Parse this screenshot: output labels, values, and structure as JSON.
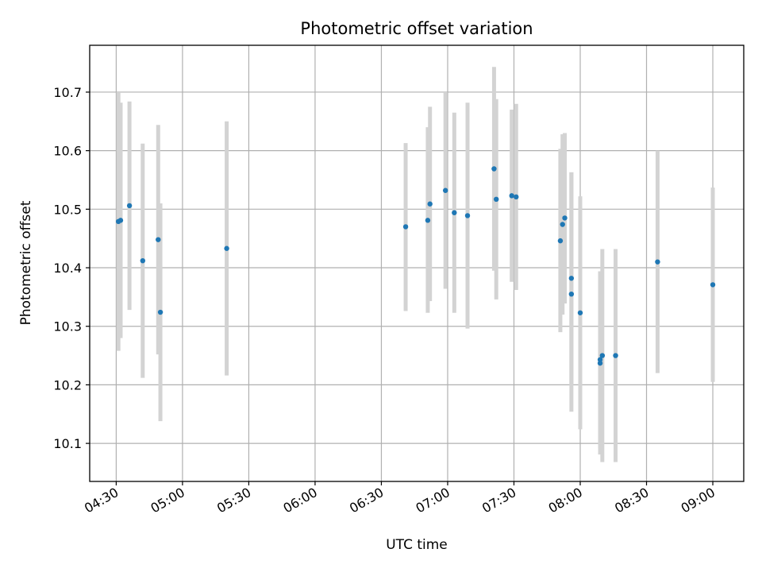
{
  "chart_data": {
    "type": "scatter",
    "title": "Photometric offset variation",
    "xlabel": "UTC time",
    "ylabel": "Photometric offset",
    "x_is_time": true,
    "xlim": [
      "04:18",
      "09:14"
    ],
    "ylim": [
      10.035,
      10.78
    ],
    "xticks": [
      "04:30",
      "05:00",
      "05:30",
      "06:00",
      "06:30",
      "07:00",
      "07:30",
      "08:00",
      "08:30",
      "09:00"
    ],
    "yticks": [
      "10.1",
      "10.2",
      "10.3",
      "10.4",
      "10.5",
      "10.6",
      "10.7"
    ],
    "grid": true,
    "legend": "none",
    "colors": {
      "marker": "#1f77b4",
      "errorbar": "#d3d3d3",
      "grid": "#b0b0b0"
    },
    "series": [
      {
        "points": [
          {
            "x": "04:31",
            "y": 10.479,
            "err_low": 10.258,
            "err_high": 10.7
          },
          {
            "x": "04:32",
            "y": 10.481,
            "err_low": 10.28,
            "err_high": 10.682
          },
          {
            "x": "04:36",
            "y": 10.506,
            "err_low": 10.328,
            "err_high": 10.684
          },
          {
            "x": "04:42",
            "y": 10.412,
            "err_low": 10.212,
            "err_high": 10.612
          },
          {
            "x": "04:49",
            "y": 10.448,
            "err_low": 10.252,
            "err_high": 10.644
          },
          {
            "x": "04:50",
            "y": 10.324,
            "err_low": 10.138,
            "err_high": 10.51
          },
          {
            "x": "05:20",
            "y": 10.433,
            "err_low": 10.216,
            "err_high": 10.65
          },
          {
            "x": "06:41",
            "y": 10.47,
            "err_low": 10.326,
            "err_high": 10.613
          },
          {
            "x": "06:51",
            "y": 10.481,
            "err_low": 10.323,
            "err_high": 10.64
          },
          {
            "x": "06:52",
            "y": 10.509,
            "err_low": 10.343,
            "err_high": 10.675
          },
          {
            "x": "06:59",
            "y": 10.532,
            "err_low": 10.364,
            "err_high": 10.7
          },
          {
            "x": "07:03",
            "y": 10.494,
            "err_low": 10.323,
            "err_high": 10.665
          },
          {
            "x": "07:09",
            "y": 10.489,
            "err_low": 10.296,
            "err_high": 10.682
          },
          {
            "x": "07:21",
            "y": 10.569,
            "err_low": 10.395,
            "err_high": 10.743
          },
          {
            "x": "07:22",
            "y": 10.517,
            "err_low": 10.346,
            "err_high": 10.688
          },
          {
            "x": "07:29",
            "y": 10.523,
            "err_low": 10.376,
            "err_high": 10.67
          },
          {
            "x": "07:31",
            "y": 10.521,
            "err_low": 10.362,
            "err_high": 10.68
          },
          {
            "x": "07:51",
            "y": 10.446,
            "err_low": 10.29,
            "err_high": 10.603
          },
          {
            "x": "07:52",
            "y": 10.474,
            "err_low": 10.32,
            "err_high": 10.628
          },
          {
            "x": "07:53",
            "y": 10.485,
            "err_low": 10.339,
            "err_high": 10.63
          },
          {
            "x": "07:56",
            "y": 10.355,
            "err_low": 10.154,
            "err_high": 10.563
          },
          {
            "x": "07:56",
            "y": 10.382,
            "err_low": 10.2,
            "err_high": 10.563
          },
          {
            "x": "08:00",
            "y": 10.323,
            "err_low": 10.124,
            "err_high": 10.522
          },
          {
            "x": "08:09",
            "y": 10.237,
            "err_low": 10.081,
            "err_high": 10.393
          },
          {
            "x": "08:09",
            "y": 10.243,
            "err_low": 10.092,
            "err_high": 10.394
          },
          {
            "x": "08:10",
            "y": 10.25,
            "err_low": 10.068,
            "err_high": 10.432
          },
          {
            "x": "08:16",
            "y": 10.25,
            "err_low": 10.068,
            "err_high": 10.432
          },
          {
            "x": "08:35",
            "y": 10.41,
            "err_low": 10.22,
            "err_high": 10.6
          },
          {
            "x": "09:00",
            "y": 10.371,
            "err_low": 10.205,
            "err_high": 10.537
          }
        ]
      }
    ]
  }
}
